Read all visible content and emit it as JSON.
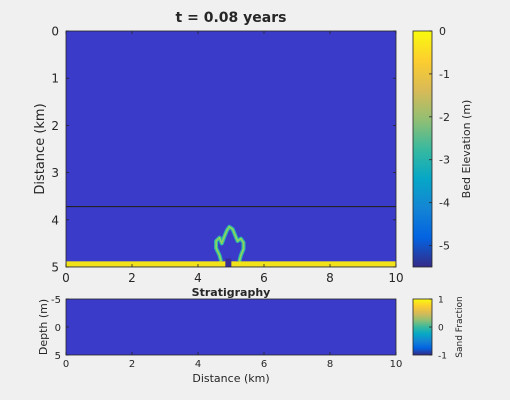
{
  "chart_data": [
    {
      "type": "heatmap",
      "title": "t = 0.08 years",
      "xlabel": "",
      "ylabel": "Distance (km)",
      "xlim": [
        0,
        10
      ],
      "ylim": [
        0,
        5
      ],
      "y_reversed": true,
      "x_ticks": [
        "0",
        "2",
        "4",
        "6",
        "8",
        "10"
      ],
      "y_ticks": [
        "0",
        "1",
        "2",
        "3",
        "4",
        "5"
      ],
      "background_value": -5.5,
      "shoreline_y": 3.72,
      "shore_band": {
        "y_from": 4.88,
        "y_to": 5.0,
        "value": 0
      },
      "channel": {
        "x": 4.92,
        "y_from": 4.82,
        "y_to": 5.0,
        "value": -5.5
      },
      "lobe_outline_points": [
        [
          4.7,
          4.88
        ],
        [
          4.65,
          4.75
        ],
        [
          4.55,
          4.6
        ],
        [
          4.55,
          4.45
        ],
        [
          4.65,
          4.38
        ],
        [
          4.72,
          4.5
        ],
        [
          4.8,
          4.35
        ],
        [
          4.88,
          4.22
        ],
        [
          4.95,
          4.15
        ],
        [
          5.05,
          4.2
        ],
        [
          5.12,
          4.32
        ],
        [
          5.2,
          4.45
        ],
        [
          5.3,
          4.4
        ],
        [
          5.38,
          4.48
        ],
        [
          5.38,
          4.62
        ],
        [
          5.3,
          4.75
        ],
        [
          5.25,
          4.88
        ]
      ],
      "colorbar": {
        "label": "Bed Elevation (m)",
        "range": [
          -5.5,
          0
        ],
        "ticks": [
          "0",
          "-1",
          "-2",
          "-3",
          "-4",
          "-5"
        ],
        "tick_values": [
          0,
          -1,
          -2,
          -3,
          -4,
          -5
        ]
      }
    },
    {
      "type": "heatmap",
      "title": "Stratigraphy",
      "xlabel": "Distance (km)",
      "ylabel": "Depth (m)",
      "xlim": [
        0,
        10
      ],
      "ylim": [
        -5,
        5
      ],
      "x_ticks": [
        "0",
        "2",
        "4",
        "6",
        "8",
        "10"
      ],
      "y_ticks": [
        "-5",
        "0",
        "5"
      ],
      "fill_value": -1,
      "colorbar": {
        "label": "Sand Fraction",
        "range": [
          -1,
          1
        ],
        "ticks": [
          "1",
          "0",
          "-1"
        ],
        "tick_values": [
          1,
          0,
          -1
        ]
      }
    }
  ],
  "colors": {
    "figure_bg": "#f0f0f0",
    "axis": "#262626",
    "parula": [
      "#352a87",
      "#0363e1",
      "#1485d4",
      "#06a7c6",
      "#38b99e",
      "#92bf73",
      "#d9ba56",
      "#fcce2e",
      "#f9fb0e"
    ]
  }
}
